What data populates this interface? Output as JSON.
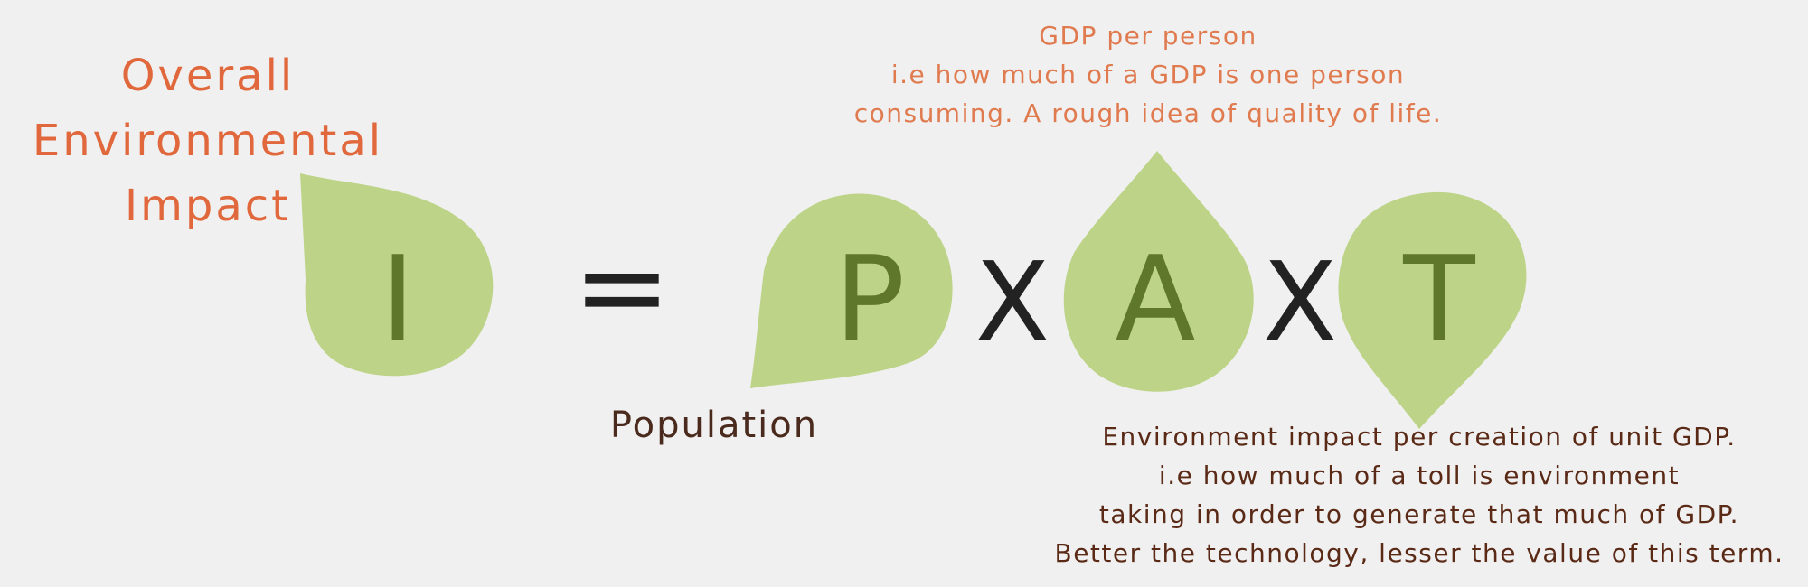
{
  "labels": {
    "impact": [
      "Overall",
      "Environmental",
      "Impact"
    ],
    "affluence_note": [
      "GDP per person",
      "i.e how much of a GDP is one person",
      "consuming. A rough idea of quality of life."
    ],
    "population": "Population",
    "technology_note": [
      "Environment impact per creation of unit GDP.",
      "i.e how much of a toll is environment",
      "taking in order to generate that much of GDP.",
      "Better the technology, lesser the value of this term."
    ]
  },
  "equation": {
    "lhs": "I",
    "equals": "=",
    "p": "P",
    "times_1": "X",
    "a": "A",
    "times_2": "X",
    "t": "T"
  },
  "colors": {
    "leaf": "#bdd488",
    "letter": "#5e772a",
    "operator": "#222222",
    "title": "#e0683c",
    "top_note": "#e07b50",
    "dark_text": "#4a2a1c"
  }
}
